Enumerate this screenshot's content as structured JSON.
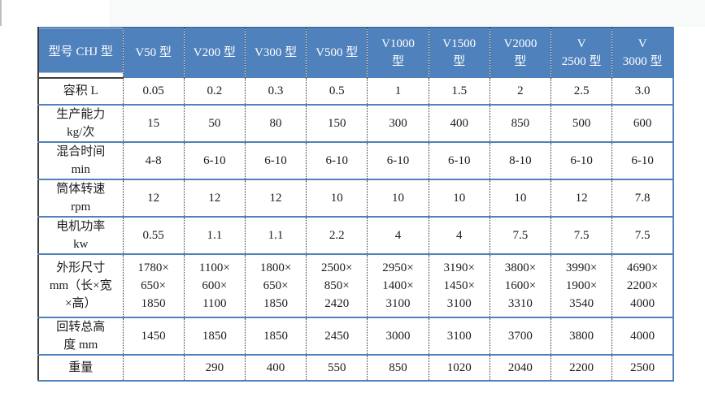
{
  "colors": {
    "header_bg": "#4f81bd",
    "header_text": "#ffffff",
    "row_line": "#4f81bd",
    "column_dotted_line": "#333333",
    "outer_left_border": "#3d3d3d",
    "top_strip_bg": "#f8f9f9"
  },
  "table": {
    "columns": [
      "型号 CHJ 型",
      "V50 型",
      "V200 型",
      "V300 型",
      "V500 型",
      "V1000\n型",
      "V1500\n型",
      "V2000\n型",
      "V\n2500 型",
      "V\n3000 型"
    ],
    "rows": [
      {
        "label": "容积 L",
        "values": [
          "0.05",
          "0.2",
          "0.3",
          "0.5",
          "1",
          "1.5",
          "2",
          "2.5",
          "3.0"
        ]
      },
      {
        "label": "生产能力\nkg/次",
        "values": [
          "15",
          "50",
          "80",
          "150",
          "300",
          "400",
          "850",
          "500",
          "600"
        ]
      },
      {
        "label": "混合时间\nmin",
        "values": [
          "4-8",
          "6-10",
          "6-10",
          "6-10",
          "6-10",
          "6-10",
          "8-10",
          "6-10",
          "6-10"
        ]
      },
      {
        "label": "筒体转速\nrpm",
        "values": [
          "12",
          "12",
          "12",
          "10",
          "10",
          "10",
          "10",
          "12",
          "7.8"
        ]
      },
      {
        "label": "电机功率\nkw",
        "values": [
          "0.55",
          "1.1",
          "1.1",
          "2.2",
          "4",
          "4",
          "7.5",
          "7.5",
          "7.5"
        ]
      },
      {
        "label": "外形尺寸\nmm（长×宽\n×高）",
        "values": [
          "1780×\n650×\n1850",
          "1100×\n600×\n1100",
          "1800×\n650×\n1850",
          "2500×\n850×\n2420",
          "2950×\n1400×\n3100",
          "3190×\n1450×\n3100",
          "3800×\n1600×\n3310",
          "3990×\n1900×\n3540",
          "4690×\n2200×\n4000"
        ]
      },
      {
        "label": "回转总高\n度 mm",
        "values": [
          "1450",
          "1850",
          "1850",
          "2450",
          "3000",
          "3100",
          "3700",
          "3800",
          "4000"
        ]
      },
      {
        "label": "重量",
        "values": [
          "",
          "290",
          "400",
          "550",
          "850",
          "1020",
          "2040",
          "2200",
          "2500"
        ]
      }
    ]
  }
}
